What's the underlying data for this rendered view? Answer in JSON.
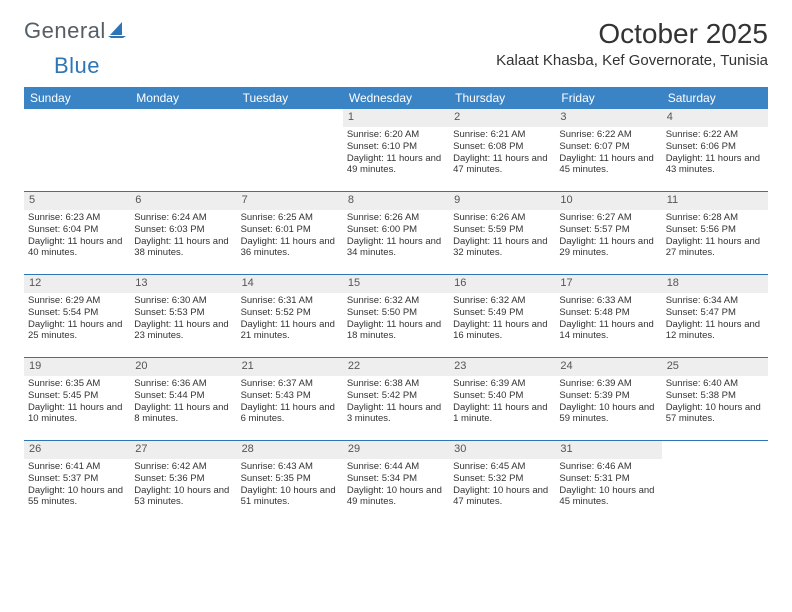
{
  "brand": {
    "part1": "General",
    "part2": "Blue"
  },
  "title": "October 2025",
  "location": "Kalaat Khasba, Kef Governorate, Tunisia",
  "colors": {
    "header_bg": "#3a83b6",
    "divider": "#2e75b6",
    "daynum_bg": "#eeeeee",
    "text": "#333333",
    "logo_gray": "#555e66",
    "logo_blue": "#2e75b6"
  },
  "day_names": [
    "Sunday",
    "Monday",
    "Tuesday",
    "Wednesday",
    "Thursday",
    "Friday",
    "Saturday"
  ],
  "weeks": [
    [
      {
        "blank": true
      },
      {
        "blank": true
      },
      {
        "blank": true
      },
      {
        "n": "1",
        "sr": "6:20 AM",
        "ss": "6:10 PM",
        "dl": "11 hours and 49 minutes."
      },
      {
        "n": "2",
        "sr": "6:21 AM",
        "ss": "6:08 PM",
        "dl": "11 hours and 47 minutes."
      },
      {
        "n": "3",
        "sr": "6:22 AM",
        "ss": "6:07 PM",
        "dl": "11 hours and 45 minutes."
      },
      {
        "n": "4",
        "sr": "6:22 AM",
        "ss": "6:06 PM",
        "dl": "11 hours and 43 minutes."
      }
    ],
    [
      {
        "n": "5",
        "sr": "6:23 AM",
        "ss": "6:04 PM",
        "dl": "11 hours and 40 minutes."
      },
      {
        "n": "6",
        "sr": "6:24 AM",
        "ss": "6:03 PM",
        "dl": "11 hours and 38 minutes."
      },
      {
        "n": "7",
        "sr": "6:25 AM",
        "ss": "6:01 PM",
        "dl": "11 hours and 36 minutes."
      },
      {
        "n": "8",
        "sr": "6:26 AM",
        "ss": "6:00 PM",
        "dl": "11 hours and 34 minutes."
      },
      {
        "n": "9",
        "sr": "6:26 AM",
        "ss": "5:59 PM",
        "dl": "11 hours and 32 minutes."
      },
      {
        "n": "10",
        "sr": "6:27 AM",
        "ss": "5:57 PM",
        "dl": "11 hours and 29 minutes."
      },
      {
        "n": "11",
        "sr": "6:28 AM",
        "ss": "5:56 PM",
        "dl": "11 hours and 27 minutes."
      }
    ],
    [
      {
        "n": "12",
        "sr": "6:29 AM",
        "ss": "5:54 PM",
        "dl": "11 hours and 25 minutes."
      },
      {
        "n": "13",
        "sr": "6:30 AM",
        "ss": "5:53 PM",
        "dl": "11 hours and 23 minutes."
      },
      {
        "n": "14",
        "sr": "6:31 AM",
        "ss": "5:52 PM",
        "dl": "11 hours and 21 minutes."
      },
      {
        "n": "15",
        "sr": "6:32 AM",
        "ss": "5:50 PM",
        "dl": "11 hours and 18 minutes."
      },
      {
        "n": "16",
        "sr": "6:32 AM",
        "ss": "5:49 PM",
        "dl": "11 hours and 16 minutes."
      },
      {
        "n": "17",
        "sr": "6:33 AM",
        "ss": "5:48 PM",
        "dl": "11 hours and 14 minutes."
      },
      {
        "n": "18",
        "sr": "6:34 AM",
        "ss": "5:47 PM",
        "dl": "11 hours and 12 minutes."
      }
    ],
    [
      {
        "n": "19",
        "sr": "6:35 AM",
        "ss": "5:45 PM",
        "dl": "11 hours and 10 minutes."
      },
      {
        "n": "20",
        "sr": "6:36 AM",
        "ss": "5:44 PM",
        "dl": "11 hours and 8 minutes."
      },
      {
        "n": "21",
        "sr": "6:37 AM",
        "ss": "5:43 PM",
        "dl": "11 hours and 6 minutes."
      },
      {
        "n": "22",
        "sr": "6:38 AM",
        "ss": "5:42 PM",
        "dl": "11 hours and 3 minutes."
      },
      {
        "n": "23",
        "sr": "6:39 AM",
        "ss": "5:40 PM",
        "dl": "11 hours and 1 minute."
      },
      {
        "n": "24",
        "sr": "6:39 AM",
        "ss": "5:39 PM",
        "dl": "10 hours and 59 minutes."
      },
      {
        "n": "25",
        "sr": "6:40 AM",
        "ss": "5:38 PM",
        "dl": "10 hours and 57 minutes."
      }
    ],
    [
      {
        "n": "26",
        "sr": "6:41 AM",
        "ss": "5:37 PM",
        "dl": "10 hours and 55 minutes."
      },
      {
        "n": "27",
        "sr": "6:42 AM",
        "ss": "5:36 PM",
        "dl": "10 hours and 53 minutes."
      },
      {
        "n": "28",
        "sr": "6:43 AM",
        "ss": "5:35 PM",
        "dl": "10 hours and 51 minutes."
      },
      {
        "n": "29",
        "sr": "6:44 AM",
        "ss": "5:34 PM",
        "dl": "10 hours and 49 minutes."
      },
      {
        "n": "30",
        "sr": "6:45 AM",
        "ss": "5:32 PM",
        "dl": "10 hours and 47 minutes."
      },
      {
        "n": "31",
        "sr": "6:46 AM",
        "ss": "5:31 PM",
        "dl": "10 hours and 45 minutes."
      },
      {
        "blank": true
      }
    ]
  ],
  "labels": {
    "sunrise": "Sunrise: ",
    "sunset": "Sunset: ",
    "daylight": "Daylight: "
  }
}
